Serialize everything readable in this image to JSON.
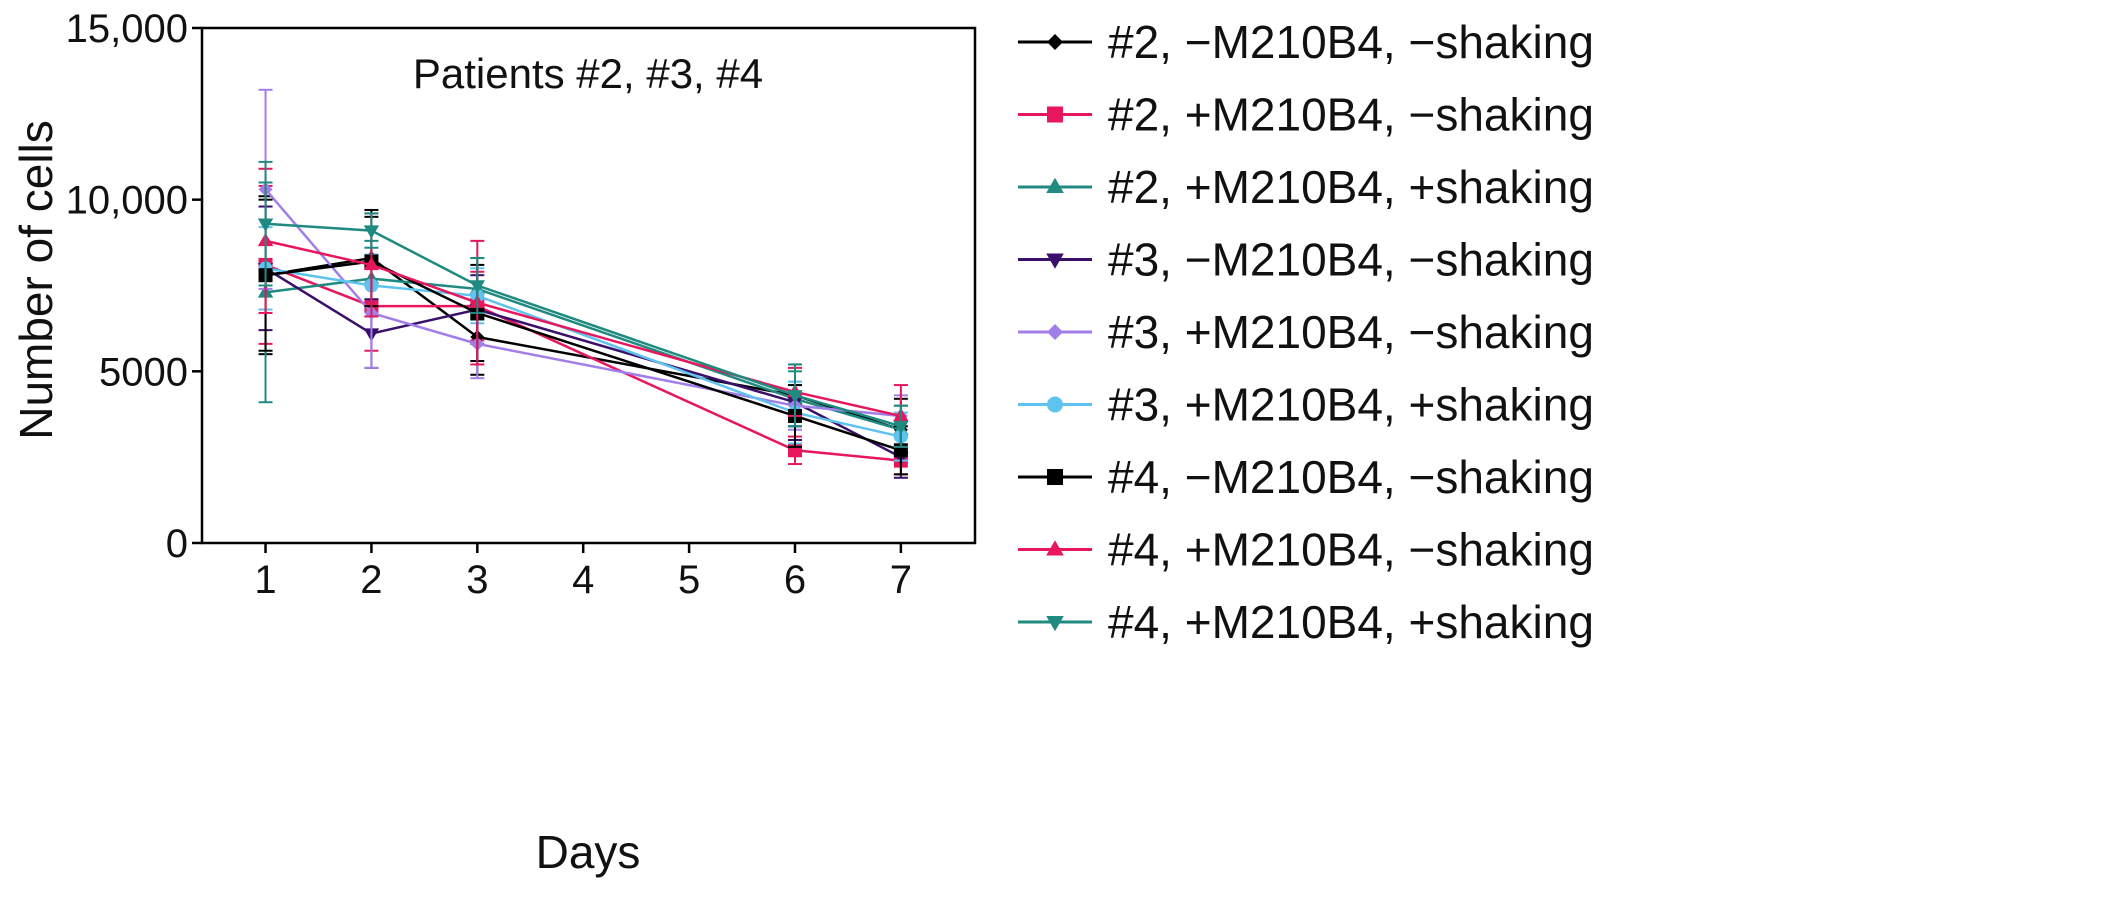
{
  "chart_data": {
    "type": "line",
    "title": "Patients #2, #3, #4",
    "xlabel": "Days",
    "ylabel": "Number of cells",
    "x": [
      1,
      2,
      3,
      6,
      7
    ],
    "xlim": [
      0.4,
      7.7
    ],
    "ylim": [
      0,
      15000
    ],
    "xticks": [
      1,
      2,
      3,
      4,
      5,
      6,
      7
    ],
    "yticks": [
      0,
      5000,
      10000,
      15000
    ],
    "ytick_labels": [
      "0",
      "5000",
      "10,000",
      "15,000"
    ],
    "grid": false,
    "legend_position": "right",
    "series": [
      {
        "name": "#2, −M210B4, −shaking",
        "color": "#000000",
        "marker": "diamond",
        "values": [
          7800,
          8300,
          6000,
          4300,
          3300
        ],
        "errors": [
          2300,
          1400,
          1100,
          900,
          900
        ]
      },
      {
        "name": "#2, +M210B4, −shaking",
        "color": "#e8175d",
        "marker": "square",
        "values": [
          8100,
          6900,
          6900,
          2700,
          2400
        ],
        "errors": [
          2300,
          1300,
          1000,
          400,
          400
        ]
      },
      {
        "name": "#2, +M210B4, +shaking",
        "color": "#1f8a80",
        "marker": "triangle-up",
        "values": [
          7300,
          7700,
          7400,
          4200,
          3300
        ],
        "errors": [
          3200,
          1100,
          900,
          800,
          700
        ]
      },
      {
        "name": "#3, −M210B4, −shaking",
        "color": "#3a0f6a",
        "marker": "triangle-down",
        "values": [
          8000,
          6100,
          6800,
          4100,
          2500
        ],
        "errors": [
          1800,
          1000,
          1000,
          1100,
          600
        ]
      },
      {
        "name": "#3, +M210B4, −shaking",
        "color": "#a27ee8",
        "marker": "diamond",
        "values": [
          10300,
          6700,
          5800,
          4000,
          3700
        ],
        "errors": [
          2900,
          1600,
          1000,
          700,
          600
        ]
      },
      {
        "name": "#3, +M210B4, +shaking",
        "color": "#5ec3ef",
        "marker": "circle",
        "values": [
          8000,
          7500,
          7200,
          3800,
          3100
        ],
        "errors": [
          1200,
          900,
          800,
          900,
          700
        ]
      },
      {
        "name": "#4, −M210B4, −shaking",
        "color": "#000000",
        "marker": "square",
        "values": [
          7800,
          8200,
          6700,
          3700,
          2700
        ],
        "errors": [
          2200,
          1300,
          1400,
          900,
          700
        ]
      },
      {
        "name": "#4, +M210B4, −shaking",
        "color": "#e8175d",
        "marker": "triangle-up",
        "values": [
          8800,
          8100,
          7000,
          4400,
          3700
        ],
        "errors": [
          2100,
          1500,
          1800,
          700,
          900
        ]
      },
      {
        "name": "#4, +M210B4, +shaking",
        "color": "#1f8a80",
        "marker": "triangle-down",
        "values": [
          9300,
          9100,
          7500,
          4300,
          3400
        ],
        "errors": [
          1800,
          500,
          800,
          900,
          600
        ]
      }
    ]
  }
}
